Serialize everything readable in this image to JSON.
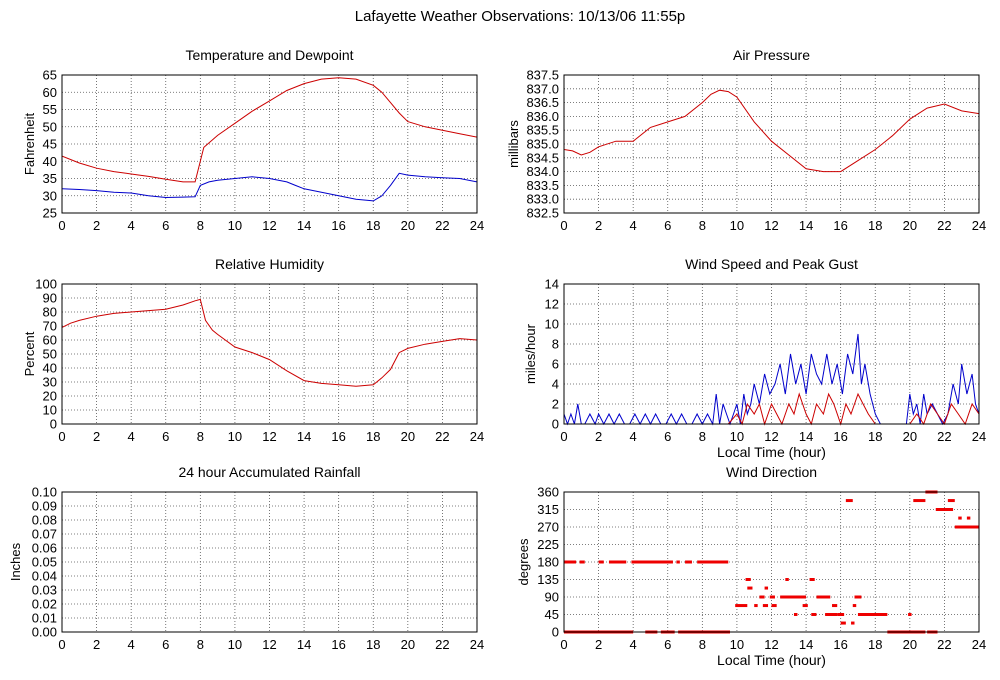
{
  "page_title": "Lafayette Weather Observations: 10/13/06 11:55p",
  "chart_data": [
    {
      "type": "line",
      "title": "Temperature and Dewpoint",
      "xlabel": "",
      "ylabel": "Fahrenheit",
      "xlim": [
        0,
        24
      ],
      "ylim": [
        25,
        65
      ],
      "xticks": [
        0,
        2,
        4,
        6,
        8,
        10,
        12,
        14,
        16,
        18,
        20,
        22,
        24
      ],
      "yticks": [
        25,
        30,
        35,
        40,
        45,
        50,
        55,
        60,
        65
      ],
      "grid": true,
      "series": [
        {
          "color": "#cc0000",
          "x": [
            0,
            1,
            2,
            3,
            4,
            5,
            6,
            7,
            7.7,
            8.2,
            9,
            10,
            11,
            12,
            13,
            14,
            15,
            16,
            17,
            18,
            18.5,
            19,
            19.5,
            20,
            21,
            22,
            23,
            24
          ],
          "y": [
            41.5,
            39.5,
            38,
            37,
            36.3,
            35.6,
            34.8,
            34,
            34,
            44,
            47.5,
            51,
            54.5,
            57.5,
            60.5,
            62.5,
            63.8,
            64.2,
            63.8,
            62,
            60,
            57,
            54,
            51.5,
            50,
            49,
            48,
            47
          ]
        },
        {
          "color": "#0000cc",
          "x": [
            0,
            1,
            2,
            3,
            4,
            5,
            6,
            7,
            7.7,
            8,
            8.5,
            9,
            10,
            11,
            12,
            13,
            13.5,
            14,
            15,
            16,
            17,
            18,
            18.5,
            19,
            19.5,
            20,
            21,
            22,
            23,
            24
          ],
          "y": [
            32,
            31.8,
            31.5,
            31,
            30.8,
            30,
            29.5,
            29.6,
            29.7,
            33,
            34,
            34.5,
            35,
            35.5,
            35,
            34,
            33,
            32,
            31,
            30,
            29,
            28.5,
            30,
            33,
            36.5,
            36,
            35.5,
            35.2,
            35,
            34
          ]
        }
      ]
    },
    {
      "type": "line",
      "title": "Air Pressure",
      "xlabel": "",
      "ylabel": "millibars",
      "xlim": [
        0,
        24
      ],
      "ylim": [
        832.5,
        837.5
      ],
      "xticks": [
        0,
        2,
        4,
        6,
        8,
        10,
        12,
        14,
        16,
        18,
        20,
        22,
        24
      ],
      "yticks": [
        "832.5",
        "833.0",
        "833.5",
        "834.0",
        "834.5",
        "835.0",
        "835.5",
        "836.0",
        "836.5",
        "837.0",
        "837.5"
      ],
      "grid": true,
      "series": [
        {
          "color": "#cc0000",
          "x": [
            0,
            0.5,
            1,
            1.5,
            2,
            3,
            4,
            5,
            6,
            7,
            8,
            8.5,
            9,
            9.5,
            10,
            11,
            12,
            13,
            14,
            15,
            16,
            17,
            18,
            19,
            20,
            21,
            22,
            23,
            24
          ],
          "y": [
            834.8,
            834.75,
            834.6,
            834.7,
            834.9,
            835.1,
            835.1,
            835.6,
            835.8,
            836.0,
            836.5,
            836.8,
            836.95,
            836.9,
            836.7,
            835.8,
            835.1,
            834.6,
            834.1,
            834.0,
            834.0,
            834.4,
            834.8,
            835.3,
            835.9,
            836.3,
            836.45,
            836.2,
            836.1
          ]
        }
      ]
    },
    {
      "type": "line",
      "title": "Relative Humidity",
      "xlabel": "",
      "ylabel": "Percent",
      "xlim": [
        0,
        24
      ],
      "ylim": [
        0,
        100
      ],
      "xticks": [
        0,
        2,
        4,
        6,
        8,
        10,
        12,
        14,
        16,
        18,
        20,
        22,
        24
      ],
      "yticks": [
        0,
        10,
        20,
        30,
        40,
        50,
        60,
        70,
        80,
        90,
        100
      ],
      "grid": true,
      "series": [
        {
          "color": "#cc0000",
          "x": [
            0,
            0.5,
            1,
            2,
            3,
            4,
            5,
            6,
            7,
            7.7,
            8,
            8.3,
            8.7,
            9,
            10,
            11,
            12,
            13,
            14,
            15,
            16,
            17,
            18,
            18.5,
            19,
            19.5,
            20,
            21,
            22,
            23,
            24
          ],
          "y": [
            69,
            72,
            74,
            77,
            79,
            80,
            81,
            82,
            85,
            88,
            89,
            74,
            67,
            64,
            55,
            51,
            46,
            38,
            31,
            29,
            28,
            27,
            28,
            33,
            39,
            51,
            54,
            57,
            59,
            61,
            60
          ]
        }
      ]
    },
    {
      "type": "line",
      "title": "Wind Speed and Peak Gust",
      "xlabel": "Local Time (hour)",
      "ylabel": "miles/hour",
      "xlim": [
        0,
        24
      ],
      "ylim": [
        0,
        14
      ],
      "xticks": [
        0,
        2,
        4,
        6,
        8,
        10,
        12,
        14,
        16,
        18,
        20,
        22,
        24
      ],
      "yticks": [
        0,
        2,
        4,
        6,
        8,
        10,
        12,
        14
      ],
      "grid": true,
      "series": [
        {
          "color": "#0000cc",
          "x": [
            0,
            0.2,
            0.4,
            0.6,
            0.8,
            1.0,
            1.2,
            1.5,
            1.8,
            2.0,
            2.3,
            2.6,
            2.9,
            3.2,
            3.5,
            3.8,
            4.1,
            4.4,
            4.7,
            5.0,
            5.3,
            5.6,
            5.9,
            6.2,
            6.5,
            6.8,
            7.1,
            7.4,
            7.7,
            8.0,
            8.3,
            8.6,
            8.8,
            9.0,
            9.2,
            9.4,
            9.6,
            9.8,
            10.0,
            10.2,
            10.4,
            10.6,
            10.8,
            11.0,
            11.3,
            11.6,
            11.9,
            12.2,
            12.5,
            12.8,
            13.1,
            13.4,
            13.7,
            14.0,
            14.3,
            14.6,
            14.9,
            15.2,
            15.5,
            15.8,
            16.1,
            16.4,
            16.7,
            17.0,
            17.2,
            17.4,
            17.7,
            18.0,
            18.3,
            18.6,
            19.0,
            19.4,
            19.8,
            20.0,
            20.2,
            20.4,
            20.6,
            20.8,
            21.0,
            21.3,
            21.6,
            21.9,
            22.2,
            22.5,
            22.8,
            23.0,
            23.3,
            23.6,
            23.8,
            24.0
          ],
          "y": [
            1,
            0,
            1,
            0,
            2,
            0,
            0,
            1,
            0,
            1,
            0,
            1,
            0,
            1,
            0,
            0,
            1,
            0,
            1,
            0,
            1,
            0,
            0,
            1,
            0,
            1,
            0,
            0,
            1,
            0,
            1,
            0,
            3,
            0,
            2,
            1,
            0,
            1,
            2,
            0,
            3,
            1,
            2,
            4,
            2,
            5,
            3,
            4,
            6,
            3,
            7,
            4,
            6,
            3,
            7,
            5,
            4,
            7,
            4,
            6,
            3,
            7,
            5,
            9,
            4,
            6,
            3,
            1,
            0,
            0,
            0,
            0,
            0,
            3,
            1,
            2,
            0,
            3,
            1,
            2,
            1,
            0,
            1,
            4,
            2,
            6,
            3,
            5,
            2,
            1
          ]
        },
        {
          "color": "#cc0000",
          "x": [
            0,
            8.8,
            9,
            9.5,
            10,
            10.3,
            10.6,
            11,
            11.3,
            11.6,
            12,
            12.3,
            12.6,
            13,
            13.3,
            13.6,
            14,
            14.3,
            14.6,
            15,
            15.3,
            15.6,
            16,
            16.3,
            16.6,
            17,
            17.3,
            17.6,
            18,
            18.3,
            20,
            20.4,
            20.8,
            21.2,
            21.6,
            22,
            22.4,
            22.8,
            23.2,
            23.6,
            24
          ],
          "y": [
            0,
            0,
            0,
            0,
            1,
            0,
            2,
            1,
            2,
            0,
            2,
            1,
            0,
            2,
            1,
            3,
            1,
            0,
            2,
            1,
            3,
            2,
            0,
            2,
            1,
            3,
            2,
            1,
            0,
            0,
            0,
            1,
            0,
            2,
            1,
            0,
            2,
            1,
            0,
            2,
            1
          ]
        }
      ]
    },
    {
      "type": "line",
      "title": "24 hour Accumulated Rainfall",
      "xlabel": "",
      "ylabel": "Inches",
      "xlim": [
        0,
        24
      ],
      "ylim": [
        0,
        0.1
      ],
      "xticks": [
        0,
        2,
        4,
        6,
        8,
        10,
        12,
        14,
        16,
        18,
        20,
        22,
        24
      ],
      "yticks": [
        "0.00",
        "0.01",
        "0.02",
        "0.03",
        "0.04",
        "0.05",
        "0.06",
        "0.07",
        "0.08",
        "0.09",
        "0.10"
      ],
      "grid": true,
      "series": [
        {
          "color": "#cc0000",
          "x": [
            0,
            24
          ],
          "y": [
            0,
            0
          ]
        }
      ]
    },
    {
      "type": "scatter",
      "title": "Wind Direction",
      "xlabel": "Local Time (hour)",
      "ylabel": "degrees",
      "xlim": [
        0,
        24
      ],
      "ylim": [
        0,
        360
      ],
      "xticks": [
        0,
        2,
        4,
        6,
        8,
        10,
        12,
        14,
        16,
        18,
        20,
        22,
        24
      ],
      "yticks": [
        0,
        45,
        90,
        135,
        180,
        225,
        270,
        315,
        360
      ],
      "grid": true,
      "series": [
        {
          "color": "#ee0000",
          "segments": [
            [
              0,
              0.7,
              180
            ],
            [
              0.9,
              1.2,
              180
            ],
            [
              2.0,
              2.3,
              180
            ],
            [
              2.6,
              3.6,
              180
            ],
            [
              3.9,
              6.3,
              180
            ],
            [
              6.5,
              6.7,
              180
            ],
            [
              7.0,
              7.4,
              180
            ],
            [
              7.7,
              9.5,
              180
            ],
            [
              8.2,
              8.4,
              180
            ],
            [
              0,
              4.0,
              0
            ],
            [
              4.7,
              5.4,
              0
            ],
            [
              5.6,
              6.4,
              0
            ],
            [
              6.6,
              9.6,
              0
            ],
            [
              9.9,
              10.6,
              68
            ],
            [
              10.5,
              10.8,
              135
            ],
            [
              10.6,
              10.9,
              113
            ],
            [
              11.0,
              11.2,
              68
            ],
            [
              11.3,
              11.6,
              90
            ],
            [
              11.5,
              11.8,
              68
            ],
            [
              11.6,
              11.8,
              113
            ],
            [
              12.0,
              12.3,
              68
            ],
            [
              11.9,
              12.2,
              90
            ],
            [
              12.5,
              14.0,
              90
            ],
            [
              12.8,
              13.0,
              135
            ],
            [
              13.3,
              13.5,
              45
            ],
            [
              13.8,
              14.1,
              68
            ],
            [
              14.2,
              14.5,
              135
            ],
            [
              14.3,
              14.6,
              45
            ],
            [
              14.6,
              15.4,
              90
            ],
            [
              15.1,
              15.8,
              45
            ],
            [
              15.5,
              15.8,
              68
            ],
            [
              15.8,
              16.2,
              45
            ],
            [
              16.0,
              16.3,
              23
            ],
            [
              16.3,
              16.7,
              338
            ],
            [
              16.6,
              16.8,
              23
            ],
            [
              16.8,
              17.2,
              90
            ],
            [
              16.7,
              16.9,
              68
            ],
            [
              17.0,
              18.7,
              45
            ],
            [
              18.7,
              20.9,
              0
            ],
            [
              19.9,
              20.1,
              45
            ],
            [
              20.2,
              20.9,
              338
            ],
            [
              20.9,
              21.6,
              360
            ],
            [
              21.0,
              21.6,
              0
            ],
            [
              21.5,
              22.5,
              315
            ],
            [
              22.2,
              22.6,
              338
            ],
            [
              22.6,
              24,
              270
            ],
            [
              22.8,
              23.0,
              293
            ],
            [
              23.3,
              23.5,
              293
            ]
          ]
        }
      ]
    }
  ]
}
